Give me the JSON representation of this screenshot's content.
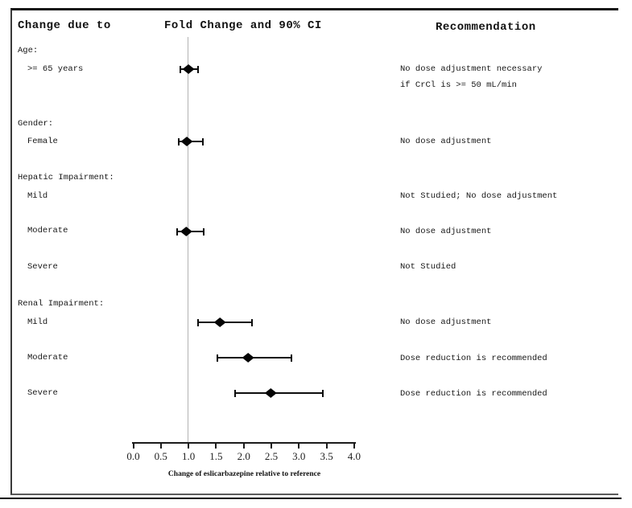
{
  "figure": {
    "columns": {
      "change_due_to": "Change due to",
      "fold_change": "Fold Change and 90% CI",
      "recommendation": "Recommendation"
    }
  },
  "axis": {
    "label": "Change of eslicarbazepine relative to reference",
    "tick_labels": [
      "0.0",
      "0.5",
      "1.0",
      "1.5",
      "2.0",
      "2.5",
      "3.0",
      "3.5",
      "4.0"
    ],
    "min": 0,
    "max": 4,
    "reference_value": 1.0
  },
  "colors": {
    "marker": "#050505",
    "reference_line": "#b3b3b3",
    "text": "#161616"
  },
  "chart_data": {
    "type": "forest",
    "title": "Fold Change and 90% CI",
    "xlabel": "Change of eslicarbazepine relative to reference",
    "xlim": [
      0,
      4
    ],
    "reference_line": 1.0,
    "grid": false,
    "groups": [
      {
        "section": "Age:",
        "items": [
          {
            "id": "age_ge65",
            "label": ">= 65 years",
            "est": 1.0,
            "ci90_low": 0.85,
            "ci90_high": 1.18,
            "recommendation_lines": [
              "No dose adjustment necessary",
              "if CrCl is >= 50 mL/min"
            ]
          }
        ]
      },
      {
        "section": "Gender:",
        "items": [
          {
            "id": "gender_female",
            "label": "Female",
            "est": 0.97,
            "ci90_low": 0.82,
            "ci90_high": 1.26,
            "recommendation_lines": [
              "No dose adjustment"
            ]
          }
        ]
      },
      {
        "section": "Hepatic Impairment:",
        "items": [
          {
            "id": "hepatic_mild",
            "label": "Mild",
            "est": null,
            "ci90_low": null,
            "ci90_high": null,
            "recommendation_lines": [
              "Not Studied; No dose adjustment"
            ]
          },
          {
            "id": "hepatic_moderate",
            "label": "Moderate",
            "est": 0.96,
            "ci90_low": 0.8,
            "ci90_high": 1.27,
            "recommendation_lines": [
              "No dose adjustment"
            ]
          },
          {
            "id": "hepatic_severe",
            "label": "Severe",
            "est": null,
            "ci90_low": null,
            "ci90_high": null,
            "recommendation_lines": [
              "Not Studied"
            ]
          }
        ]
      },
      {
        "section": "Renal Impairment:",
        "items": [
          {
            "id": "renal_mild",
            "label": "Mild",
            "est": 1.57,
            "ci90_low": 1.17,
            "ci90_high": 2.15,
            "recommendation_lines": [
              "No dose adjustment"
            ]
          },
          {
            "id": "renal_moderate",
            "label": "Moderate",
            "est": 2.08,
            "ci90_low": 1.53,
            "ci90_high": 2.86,
            "recommendation_lines": [
              "Dose reduction is recommended"
            ]
          },
          {
            "id": "renal_severe",
            "label": "Severe",
            "est": 2.49,
            "ci90_low": 1.84,
            "ci90_high": 3.44,
            "recommendation_lines": [
              "Dose reduction is recommended"
            ]
          }
        ]
      }
    ]
  }
}
